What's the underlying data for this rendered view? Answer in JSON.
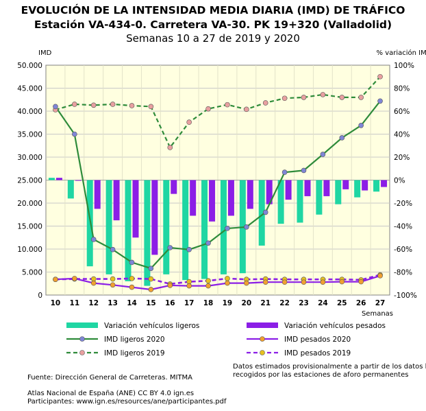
{
  "chart_data": {
    "type": "bar",
    "title": "EVOLUCIÓN DE LA INTENSIDAD MEDIA DIARIA (IMD) DE TRÁFICO",
    "subtitle": "Estación VA-434-0. Carretera VA-30. PK 19+320 (Valladolid)",
    "period": "Semanas 10 a 27 de 2019 y 2020",
    "xlabel": "Semanas",
    "y_left_label": "IMD",
    "y_right_label": "% variación IMD",
    "categories": [
      "10",
      "11",
      "12",
      "13",
      "14",
      "15",
      "16",
      "17",
      "18",
      "19",
      "20",
      "21",
      "22",
      "23",
      "24",
      "25",
      "26",
      "27"
    ],
    "y_left_ticks": [
      "0",
      "5.000",
      "10.000",
      "15.000",
      "20.000",
      "25.000",
      "30.000",
      "35.000",
      "40.000",
      "45.000",
      "50.000"
    ],
    "y_right_ticks": [
      "-100%",
      "-80%",
      "-60%",
      "-40%",
      "-20%",
      "0%",
      "20%",
      "40%",
      "60%",
      "80%",
      "100%"
    ],
    "ylim_left": [
      0,
      50000
    ],
    "ylim_right": [
      -100,
      100
    ],
    "grid": true,
    "colors": {
      "ligeros_bar": "#1fd6a3",
      "pesados_bar": "#8b1ee6",
      "ligeros_2020": "#2e8b3a",
      "pesados_2020": "#8b1ee6",
      "ligeros_2019": "#2e8b3a",
      "pesados_2019": "#8b1ee6",
      "marker_ligeros_2020": "#7f86d6",
      "marker_pesados_2020": "#f0a030",
      "marker_ligeros_2019": "#e8a0a0",
      "marker_pesados_2019": "#e6c020"
    },
    "series": [
      {
        "name": "Variación vehículos ligeros",
        "axis": "right",
        "kind": "bar",
        "values": [
          2,
          -16,
          -75,
          -82,
          -88,
          -92,
          -82,
          -87,
          -86,
          -82,
          -81,
          -57,
          -38,
          -37,
          -30,
          -21,
          -15,
          -10
        ]
      },
      {
        "name": "Variación vehículos pesados",
        "axis": "right",
        "kind": "bar",
        "values": [
          2,
          0,
          -25,
          -35,
          -50,
          -65,
          -12,
          -31,
          -36,
          -31,
          -25,
          -21,
          -17,
          -14,
          -14,
          -8,
          -9,
          -6
        ]
      },
      {
        "name": "IMD ligeros 2020",
        "axis": "left",
        "kind": "line",
        "style": "solid",
        "values": [
          41000,
          35000,
          12100,
          9900,
          7100,
          5800,
          10300,
          9900,
          11300,
          14500,
          14800,
          18000,
          26700,
          27100,
          30600,
          34200,
          36900,
          42200
        ]
      },
      {
        "name": "IMD pesados 2020",
        "axis": "left",
        "kind": "line",
        "style": "solid",
        "values": [
          3400,
          3600,
          2600,
          2200,
          1700,
          1200,
          2100,
          2000,
          2000,
          2600,
          2600,
          2800,
          2800,
          2800,
          2800,
          2900,
          2900,
          4200
        ]
      },
      {
        "name": "IMD ligeros 2019",
        "axis": "left",
        "kind": "line",
        "style": "dashed",
        "values": [
          40300,
          41500,
          41300,
          41500,
          41200,
          41000,
          32100,
          37600,
          40500,
          41400,
          40400,
          41800,
          42800,
          43000,
          43600,
          43000,
          43000,
          47500
        ]
      },
      {
        "name": "IMD pesados 2019",
        "axis": "left",
        "kind": "line",
        "style": "dashed",
        "values": [
          3400,
          3500,
          3500,
          3500,
          3600,
          3500,
          2400,
          2900,
          3100,
          3600,
          3400,
          3500,
          3400,
          3400,
          3400,
          3400,
          3300,
          4400
        ]
      }
    ]
  },
  "footer": {
    "note_line1": "Datos estimados provisionalmente a partir de los datos brutos",
    "note_line2": "recogidos por las estaciones de aforo permanentes",
    "source": "Fuente: Dirección General de Carreteras. MITMA",
    "atlas": "Atlas Nacional de España (ANE) CC BY 4.0 ign.es",
    "participants": "Participantes: www.ign.es/resources/ane/participantes.pdf"
  }
}
